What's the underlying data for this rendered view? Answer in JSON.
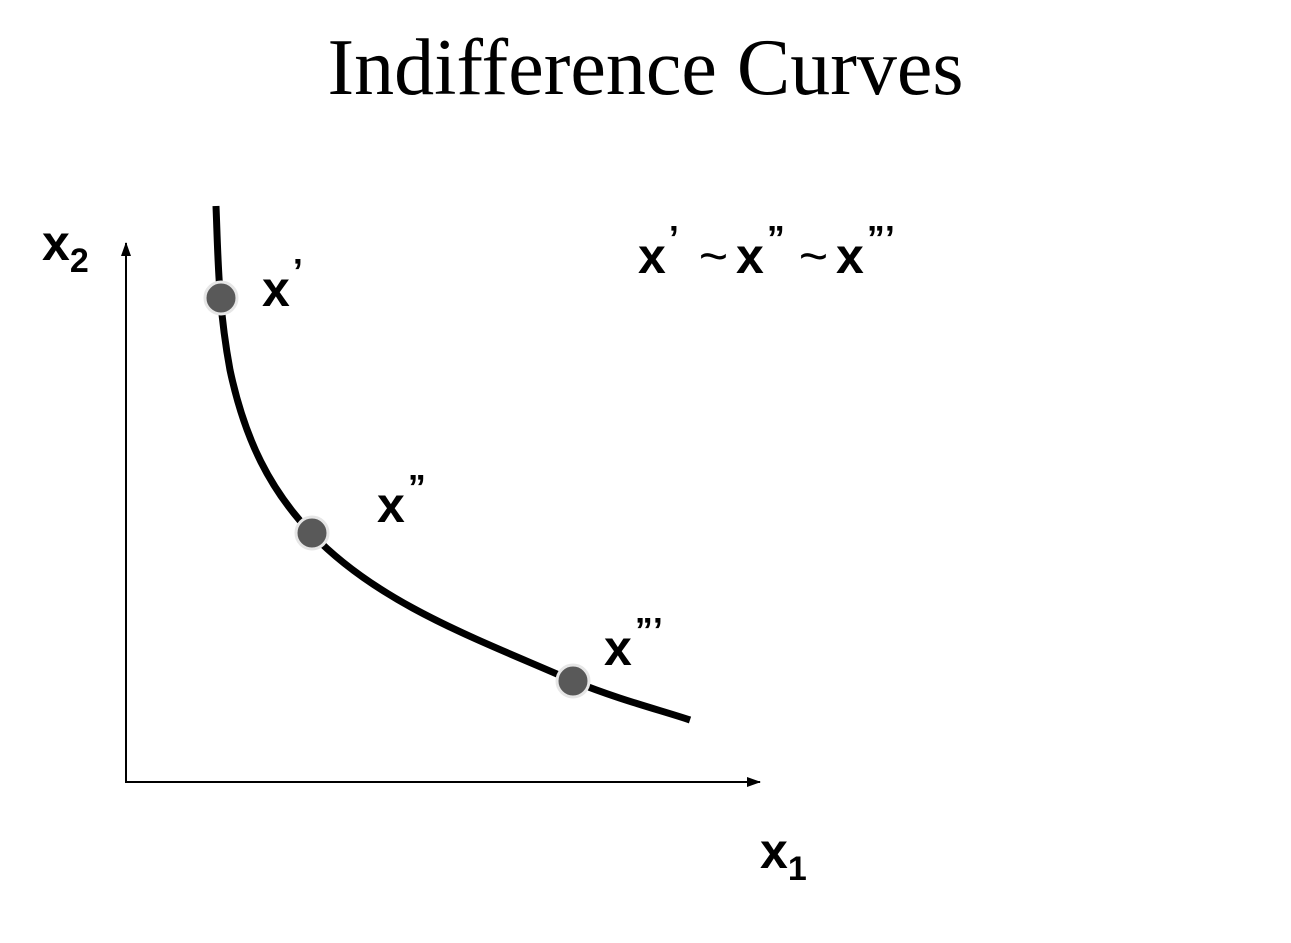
{
  "title": "Indifference Curves",
  "axes": {
    "y_label": "x",
    "y_subscript": "2",
    "x_label": "x",
    "x_subscript": "1"
  },
  "points": [
    {
      "label": "x",
      "primes": "’"
    },
    {
      "label": "x",
      "primes": "”"
    },
    {
      "label": "x",
      "primes": "”’"
    }
  ],
  "relation": {
    "terms": [
      "x",
      "x",
      "x"
    ],
    "primes": [
      "’",
      "”",
      "”’"
    ],
    "operator": "~"
  },
  "colors": {
    "curve": "#000000",
    "axis": "#000000",
    "point_fill": "#595959",
    "point_stroke": "#e6e6e6"
  }
}
